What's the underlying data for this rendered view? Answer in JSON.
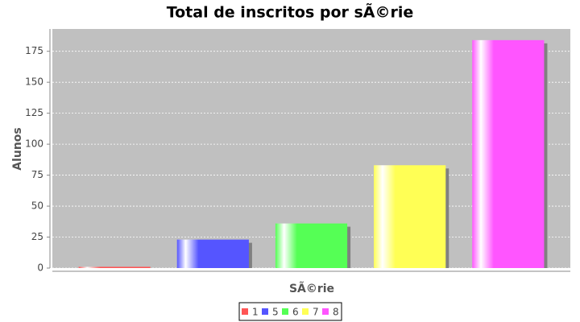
{
  "chart_data": {
    "type": "bar",
    "title": "Total de inscritos por sÃ©rie",
    "x_label": "SÃ©rie",
    "y_label": "Alunos",
    "categories": [
      null
    ],
    "series": [
      {
        "name": "1",
        "color": "#ff5555",
        "values": [
          1
        ]
      },
      {
        "name": "5",
        "color": "#5555ff",
        "values": [
          23
        ]
      },
      {
        "name": "6",
        "color": "#55ff55",
        "values": [
          36
        ]
      },
      {
        "name": "7",
        "color": "#ffff55",
        "values": [
          83
        ]
      },
      {
        "name": "8",
        "color": "#ff55ff",
        "values": [
          184
        ]
      }
    ],
    "ylim": [
      0,
      193
    ],
    "yticks": [
      0,
      25,
      50,
      75,
      100,
      125,
      150,
      175
    ],
    "grid": true
  }
}
